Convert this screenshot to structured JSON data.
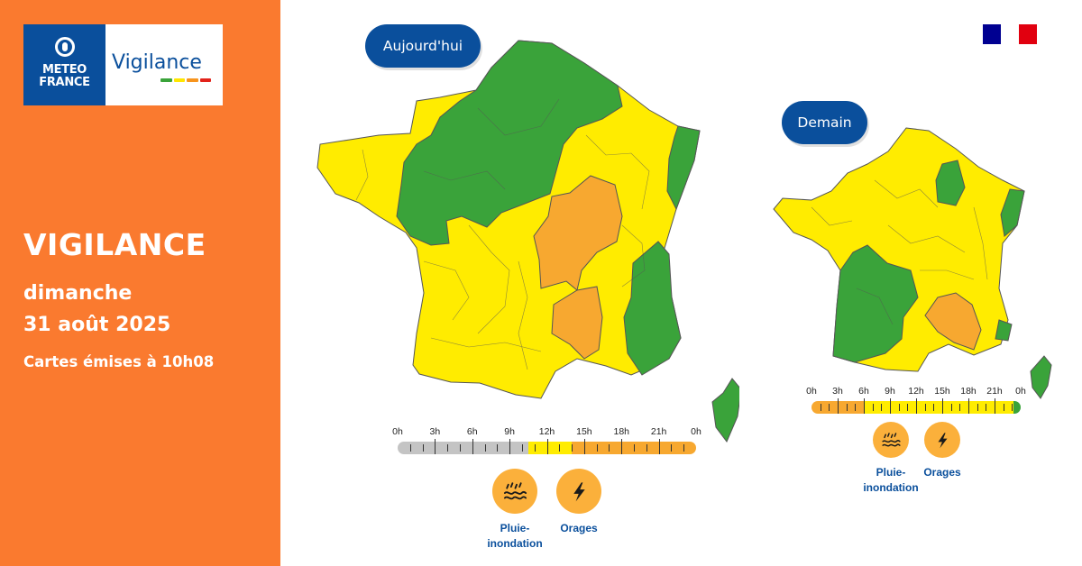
{
  "brand": {
    "logo_line1": "METEO",
    "logo_line2": "FRANCE",
    "vigilance_word": "Vigilance",
    "level_colors": [
      "#3aa33a",
      "#ffe600",
      "#f7941d",
      "#e2231a"
    ]
  },
  "header": {
    "title": "VIGILANCE",
    "day": "dimanche",
    "date": "31 août 2025",
    "issued": "Cartes émises à 10h08"
  },
  "flag_colors": [
    "#000091",
    "#ffffff",
    "#e1000f"
  ],
  "colors": {
    "green": "#3aa33a",
    "yellow": "#ffec00",
    "orange": "#f7a830",
    "grey": "#c4c4c4",
    "accent_blue": "#0a4f9c",
    "panel_orange": "#fa7a2f"
  },
  "today": {
    "label": "Aujourd'hui",
    "hours": [
      "0h",
      "3h",
      "6h",
      "9h",
      "12h",
      "15h",
      "18h",
      "21h",
      "0h"
    ],
    "timeline": [
      {
        "from": 0,
        "to": 10.5,
        "level": "grey"
      },
      {
        "from": 10.5,
        "to": 14,
        "level": "yellow"
      },
      {
        "from": 14,
        "to": 24,
        "level": "orange"
      }
    ],
    "hazards": [
      {
        "icon": "rain-flood-icon",
        "line1": "Pluie-",
        "line2": "inondation"
      },
      {
        "icon": "thunderstorm-icon",
        "line1": "Orages",
        "line2": ""
      }
    ]
  },
  "tomorrow": {
    "label": "Demain",
    "hours": [
      "0h",
      "3h",
      "6h",
      "9h",
      "12h",
      "15h",
      "18h",
      "21h",
      "0h"
    ],
    "timeline": [
      {
        "from": 0,
        "to": 6,
        "level": "orange"
      },
      {
        "from": 6,
        "to": 23.2,
        "level": "yellow"
      },
      {
        "from": 23.2,
        "to": 24,
        "level": "green"
      }
    ],
    "hazards": [
      {
        "icon": "rain-flood-icon",
        "line1": "Pluie-",
        "line2": "inondation"
      },
      {
        "icon": "thunderstorm-icon",
        "line1": "Orages",
        "line2": ""
      }
    ]
  }
}
